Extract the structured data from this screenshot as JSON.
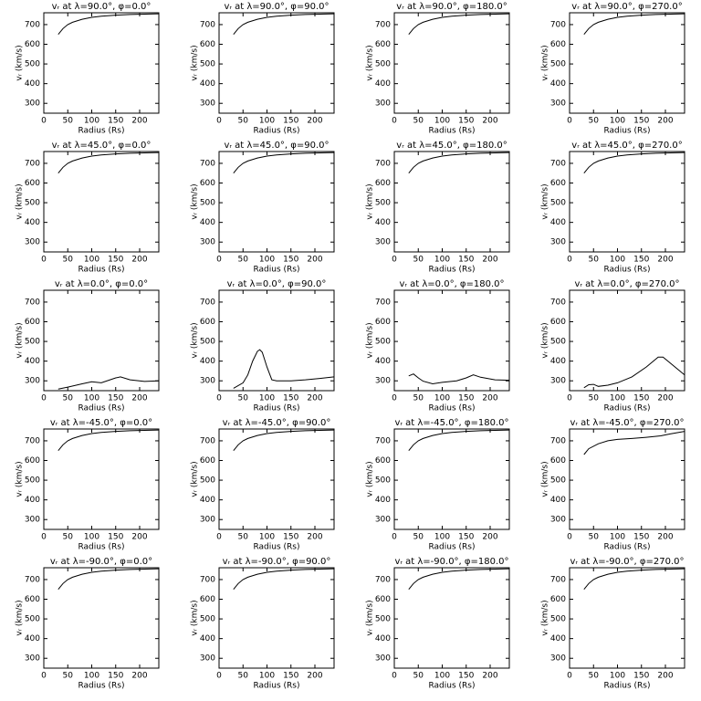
{
  "chart_data": [
    {
      "type": "line",
      "title": "vᵣ at λ=90.0°, φ=0.0°",
      "xlabel": "Radius (Rs)",
      "ylabel": "vᵣ (km/s)",
      "x": [
        30,
        40,
        50,
        60,
        80,
        100,
        120,
        150,
        180,
        210,
        240
      ],
      "values": [
        650,
        680,
        700,
        712,
        727,
        737,
        743,
        748,
        751,
        753,
        755
      ],
      "color": "#000000",
      "xlim": [
        0,
        240
      ],
      "ylim": [
        250,
        760
      ],
      "xticks": [
        0,
        50,
        100,
        150,
        200
      ],
      "yticks": [
        300,
        400,
        500,
        600,
        700
      ]
    },
    {
      "type": "line",
      "title": "vᵣ at λ=90.0°, φ=90.0°",
      "xlabel": "Radius (Rs)",
      "ylabel": "vᵣ (km/s)",
      "x": [
        30,
        40,
        50,
        60,
        80,
        100,
        120,
        150,
        180,
        210,
        240
      ],
      "values": [
        650,
        680,
        700,
        712,
        727,
        737,
        743,
        748,
        751,
        753,
        755
      ],
      "color": "#000000",
      "xlim": [
        0,
        240
      ],
      "ylim": [
        250,
        760
      ],
      "xticks": [
        0,
        50,
        100,
        150,
        200
      ],
      "yticks": [
        300,
        400,
        500,
        600,
        700
      ]
    },
    {
      "type": "line",
      "title": "vᵣ at λ=90.0°, φ=180.0°",
      "xlabel": "Radius (Rs)",
      "ylabel": "vᵣ (km/s)",
      "x": [
        30,
        40,
        50,
        60,
        80,
        100,
        120,
        150,
        180,
        210,
        240
      ],
      "values": [
        650,
        680,
        700,
        712,
        727,
        737,
        743,
        748,
        751,
        753,
        755
      ],
      "color": "#000000",
      "xlim": [
        0,
        240
      ],
      "ylim": [
        250,
        760
      ],
      "xticks": [
        0,
        50,
        100,
        150,
        200
      ],
      "yticks": [
        300,
        400,
        500,
        600,
        700
      ]
    },
    {
      "type": "line",
      "title": "vᵣ at λ=90.0°, φ=270.0°",
      "xlabel": "Radius (Rs)",
      "ylabel": "vᵣ (km/s)",
      "x": [
        30,
        40,
        50,
        60,
        80,
        100,
        120,
        150,
        180,
        210,
        240
      ],
      "values": [
        650,
        680,
        700,
        712,
        727,
        737,
        743,
        748,
        751,
        753,
        755
      ],
      "color": "#000000",
      "xlim": [
        0,
        240
      ],
      "ylim": [
        250,
        760
      ],
      "xticks": [
        0,
        50,
        100,
        150,
        200
      ],
      "yticks": [
        300,
        400,
        500,
        600,
        700
      ]
    },
    {
      "type": "line",
      "title": "vᵣ at λ=45.0°, φ=0.0°",
      "xlabel": "Radius (Rs)",
      "ylabel": "vᵣ (km/s)",
      "x": [
        30,
        40,
        50,
        60,
        80,
        100,
        120,
        150,
        180,
        210,
        240
      ],
      "values": [
        650,
        680,
        700,
        712,
        727,
        737,
        743,
        748,
        751,
        753,
        755
      ],
      "color": "#000000",
      "xlim": [
        0,
        240
      ],
      "ylim": [
        250,
        760
      ],
      "xticks": [
        0,
        50,
        100,
        150,
        200
      ],
      "yticks": [
        300,
        400,
        500,
        600,
        700
      ]
    },
    {
      "type": "line",
      "title": "vᵣ at λ=45.0°, φ=90.0°",
      "xlabel": "Radius (Rs)",
      "ylabel": "vᵣ (km/s)",
      "x": [
        30,
        40,
        50,
        60,
        80,
        100,
        120,
        150,
        180,
        210,
        240
      ],
      "values": [
        650,
        680,
        700,
        712,
        727,
        737,
        743,
        748,
        751,
        753,
        755
      ],
      "color": "#000000",
      "xlim": [
        0,
        240
      ],
      "ylim": [
        250,
        760
      ],
      "xticks": [
        0,
        50,
        100,
        150,
        200
      ],
      "yticks": [
        300,
        400,
        500,
        600,
        700
      ]
    },
    {
      "type": "line",
      "title": "vᵣ at λ=45.0°, φ=180.0°",
      "xlabel": "Radius (Rs)",
      "ylabel": "vᵣ (km/s)",
      "x": [
        30,
        40,
        50,
        60,
        80,
        100,
        120,
        150,
        180,
        210,
        240
      ],
      "values": [
        650,
        680,
        700,
        712,
        727,
        737,
        743,
        748,
        751,
        753,
        755
      ],
      "color": "#000000",
      "xlim": [
        0,
        240
      ],
      "ylim": [
        250,
        760
      ],
      "xticks": [
        0,
        50,
        100,
        150,
        200
      ],
      "yticks": [
        300,
        400,
        500,
        600,
        700
      ]
    },
    {
      "type": "line",
      "title": "vᵣ at λ=45.0°, φ=270.0°",
      "xlabel": "Radius (Rs)",
      "ylabel": "vᵣ (km/s)",
      "x": [
        30,
        40,
        50,
        60,
        80,
        100,
        120,
        150,
        180,
        210,
        240
      ],
      "values": [
        650,
        680,
        700,
        712,
        727,
        737,
        743,
        748,
        751,
        753,
        755
      ],
      "color": "#000000",
      "xlim": [
        0,
        240
      ],
      "ylim": [
        250,
        760
      ],
      "xticks": [
        0,
        50,
        100,
        150,
        200
      ],
      "yticks": [
        300,
        400,
        500,
        600,
        700
      ]
    },
    {
      "type": "line",
      "title": "vᵣ at λ=0.0°, φ=0.0°",
      "xlabel": "Radius (Rs)",
      "ylabel": "vᵣ (km/s)",
      "x": [
        30,
        50,
        80,
        100,
        120,
        150,
        160,
        180,
        210,
        240
      ],
      "values": [
        258,
        268,
        285,
        295,
        290,
        315,
        320,
        305,
        297,
        300
      ],
      "color": "#000000",
      "xlim": [
        0,
        240
      ],
      "ylim": [
        250,
        760
      ],
      "xticks": [
        0,
        50,
        100,
        150,
        200
      ],
      "yticks": [
        300,
        400,
        500,
        600,
        700
      ]
    },
    {
      "type": "line",
      "title": "vᵣ at λ=0.0°, φ=90.0°",
      "xlabel": "Radius (Rs)",
      "ylabel": "vᵣ (km/s)",
      "x": [
        30,
        50,
        60,
        70,
        80,
        85,
        90,
        100,
        110,
        120,
        150,
        180,
        210,
        240
      ],
      "values": [
        262,
        290,
        330,
        400,
        450,
        458,
        445,
        370,
        305,
        300,
        300,
        305,
        312,
        320
      ],
      "color": "#000000",
      "xlim": [
        0,
        240
      ],
      "ylim": [
        250,
        760
      ],
      "xticks": [
        0,
        50,
        100,
        150,
        200
      ],
      "yticks": [
        300,
        400,
        500,
        600,
        700
      ]
    },
    {
      "type": "line",
      "title": "vᵣ at λ=0.0°, φ=180.0°",
      "xlabel": "Radius (Rs)",
      "ylabel": "vᵣ (km/s)",
      "x": [
        30,
        40,
        50,
        60,
        80,
        100,
        130,
        150,
        165,
        180,
        210,
        240
      ],
      "values": [
        325,
        335,
        315,
        298,
        285,
        292,
        300,
        315,
        330,
        318,
        305,
        303
      ],
      "color": "#000000",
      "xlim": [
        0,
        240
      ],
      "ylim": [
        250,
        760
      ],
      "xticks": [
        0,
        50,
        100,
        150,
        200
      ],
      "yticks": [
        300,
        400,
        500,
        600,
        700
      ]
    },
    {
      "type": "line",
      "title": "vᵣ at λ=0.0°, φ=270.0°",
      "xlabel": "Radius (Rs)",
      "ylabel": "vᵣ (km/s)",
      "x": [
        30,
        40,
        50,
        60,
        80,
        100,
        130,
        160,
        185,
        195,
        210,
        240
      ],
      "values": [
        265,
        280,
        282,
        272,
        278,
        290,
        320,
        370,
        420,
        420,
        390,
        330
      ],
      "color": "#000000",
      "xlim": [
        0,
        240
      ],
      "ylim": [
        250,
        760
      ],
      "xticks": [
        0,
        50,
        100,
        150,
        200
      ],
      "yticks": [
        300,
        400,
        500,
        600,
        700
      ]
    },
    {
      "type": "line",
      "title": "vᵣ at λ=-45.0°, φ=0.0°",
      "xlabel": "Radius (Rs)",
      "ylabel": "vᵣ (km/s)",
      "x": [
        30,
        40,
        50,
        60,
        80,
        100,
        120,
        150,
        180,
        210,
        240
      ],
      "values": [
        650,
        680,
        700,
        712,
        727,
        737,
        743,
        748,
        751,
        753,
        755
      ],
      "color": "#000000",
      "xlim": [
        0,
        240
      ],
      "ylim": [
        250,
        760
      ],
      "xticks": [
        0,
        50,
        100,
        150,
        200
      ],
      "yticks": [
        300,
        400,
        500,
        600,
        700
      ]
    },
    {
      "type": "line",
      "title": "vᵣ at λ=-45.0°, φ=90.0°",
      "xlabel": "Radius (Rs)",
      "ylabel": "vᵣ (km/s)",
      "x": [
        30,
        40,
        50,
        60,
        80,
        100,
        120,
        150,
        180,
        210,
        240
      ],
      "values": [
        650,
        680,
        700,
        712,
        727,
        737,
        743,
        748,
        751,
        753,
        755
      ],
      "color": "#000000",
      "xlim": [
        0,
        240
      ],
      "ylim": [
        250,
        760
      ],
      "xticks": [
        0,
        50,
        100,
        150,
        200
      ],
      "yticks": [
        300,
        400,
        500,
        600,
        700
      ]
    },
    {
      "type": "line",
      "title": "vᵣ at λ=-45.0°, φ=180.0°",
      "xlabel": "Radius (Rs)",
      "ylabel": "vᵣ (km/s)",
      "x": [
        30,
        40,
        50,
        60,
        80,
        100,
        120,
        150,
        180,
        210,
        240
      ],
      "values": [
        650,
        680,
        700,
        712,
        727,
        737,
        743,
        748,
        751,
        753,
        755
      ],
      "color": "#000000",
      "xlim": [
        0,
        240
      ],
      "ylim": [
        250,
        760
      ],
      "xticks": [
        0,
        50,
        100,
        150,
        200
      ],
      "yticks": [
        300,
        400,
        500,
        600,
        700
      ]
    },
    {
      "type": "line",
      "title": "vᵣ at λ=-45.0°, φ=270.0°",
      "xlabel": "Radius (Rs)",
      "ylabel": "vᵣ (km/s)",
      "x": [
        30,
        40,
        60,
        80,
        100,
        130,
        160,
        190,
        210,
        240
      ],
      "values": [
        630,
        660,
        685,
        700,
        707,
        712,
        718,
        725,
        735,
        748
      ],
      "color": "#000000",
      "xlim": [
        0,
        240
      ],
      "ylim": [
        250,
        760
      ],
      "xticks": [
        0,
        50,
        100,
        150,
        200
      ],
      "yticks": [
        300,
        400,
        500,
        600,
        700
      ]
    },
    {
      "type": "line",
      "title": "vᵣ at λ=-90.0°, φ=0.0°",
      "xlabel": "Radius (Rs)",
      "ylabel": "vᵣ (km/s)",
      "x": [
        30,
        40,
        50,
        60,
        80,
        100,
        120,
        150,
        180,
        210,
        240
      ],
      "values": [
        650,
        680,
        700,
        712,
        727,
        737,
        743,
        748,
        751,
        753,
        755
      ],
      "color": "#000000",
      "xlim": [
        0,
        240
      ],
      "ylim": [
        250,
        760
      ],
      "xticks": [
        0,
        50,
        100,
        150,
        200
      ],
      "yticks": [
        300,
        400,
        500,
        600,
        700
      ]
    },
    {
      "type": "line",
      "title": "vᵣ at λ=-90.0°, φ=90.0°",
      "xlabel": "Radius (Rs)",
      "ylabel": "vᵣ (km/s)",
      "x": [
        30,
        40,
        50,
        60,
        80,
        100,
        120,
        150,
        180,
        210,
        240
      ],
      "values": [
        650,
        680,
        700,
        712,
        727,
        737,
        743,
        748,
        751,
        753,
        755
      ],
      "color": "#000000",
      "xlim": [
        0,
        240
      ],
      "ylim": [
        250,
        760
      ],
      "xticks": [
        0,
        50,
        100,
        150,
        200
      ],
      "yticks": [
        300,
        400,
        500,
        600,
        700
      ]
    },
    {
      "type": "line",
      "title": "vᵣ at λ=-90.0°, φ=180.0°",
      "xlabel": "Radius (Rs)",
      "ylabel": "vᵣ (km/s)",
      "x": [
        30,
        40,
        50,
        60,
        80,
        100,
        120,
        150,
        180,
        210,
        240
      ],
      "values": [
        650,
        680,
        700,
        712,
        727,
        737,
        743,
        748,
        751,
        753,
        755
      ],
      "color": "#000000",
      "xlim": [
        0,
        240
      ],
      "ylim": [
        250,
        760
      ],
      "xticks": [
        0,
        50,
        100,
        150,
        200
      ],
      "yticks": [
        300,
        400,
        500,
        600,
        700
      ]
    },
    {
      "type": "line",
      "title": "vᵣ at λ=-90.0°, φ=270.0°",
      "xlabel": "Radius (Rs)",
      "ylabel": "vᵣ (km/s)",
      "x": [
        30,
        40,
        50,
        60,
        80,
        100,
        120,
        150,
        180,
        210,
        240
      ],
      "values": [
        650,
        680,
        700,
        712,
        727,
        737,
        743,
        748,
        751,
        753,
        755
      ],
      "color": "#000000",
      "xlim": [
        0,
        240
      ],
      "ylim": [
        250,
        760
      ],
      "xticks": [
        0,
        50,
        100,
        150,
        200
      ],
      "yticks": [
        300,
        400,
        500,
        600,
        700
      ]
    }
  ]
}
